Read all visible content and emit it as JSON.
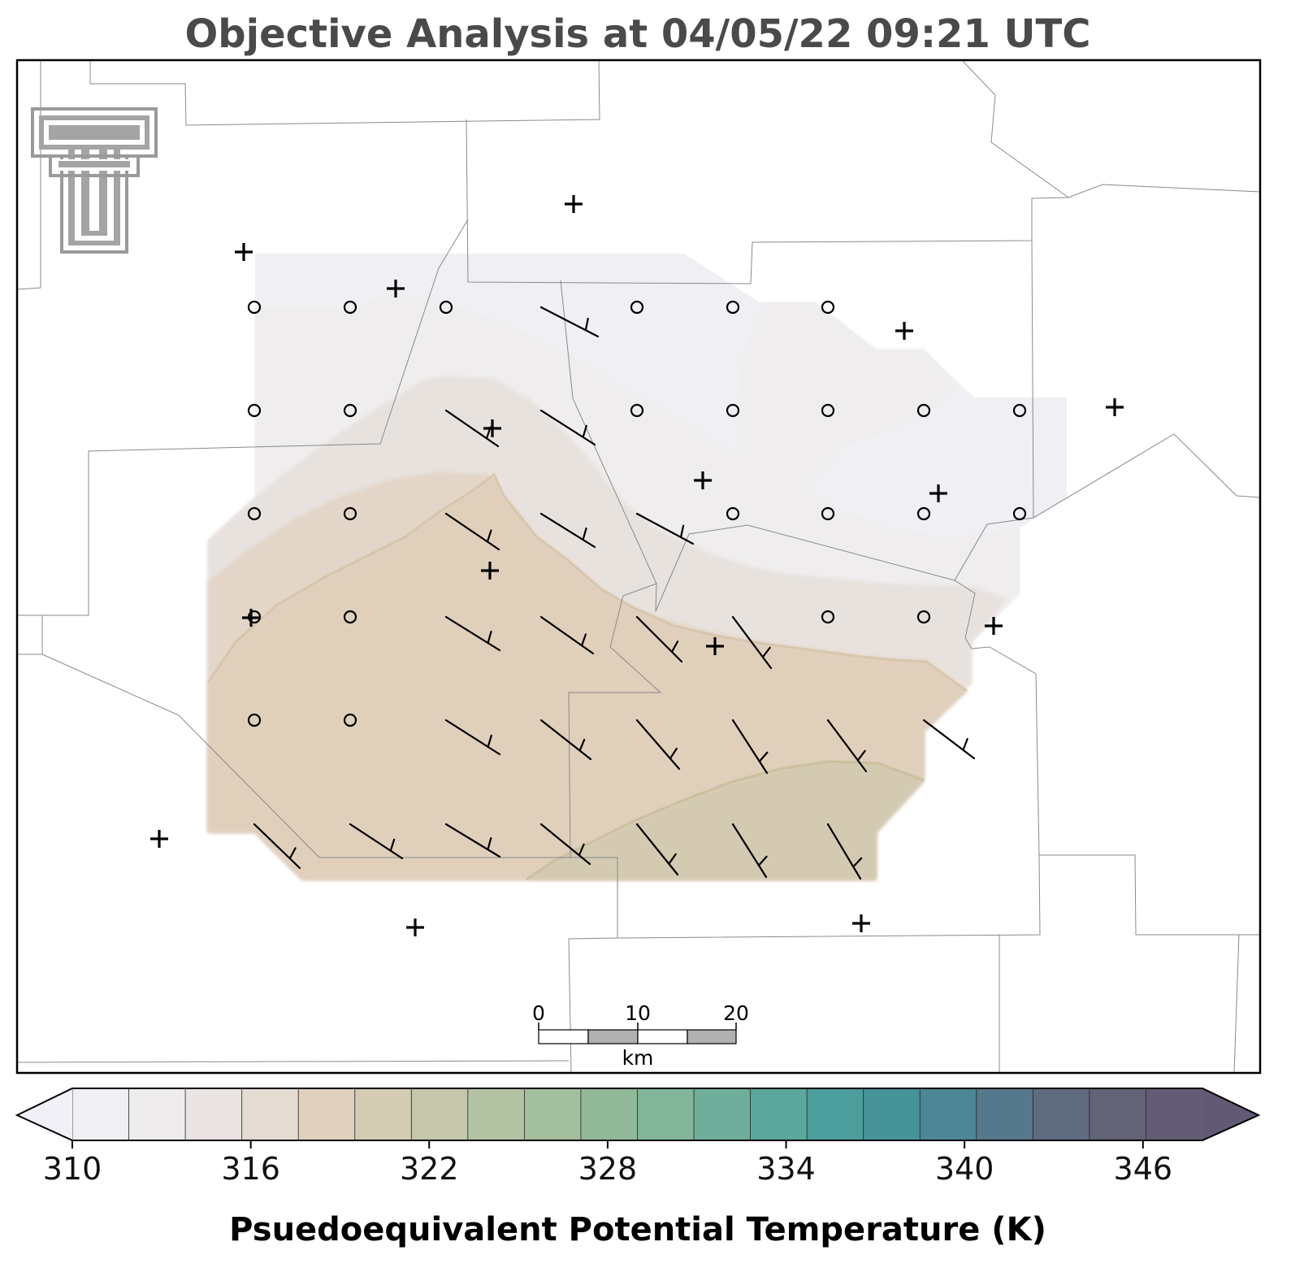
{
  "title": "Objective Analysis at 04/05/22 09:21 UTC",
  "colorbar": {
    "label": "Psuedoequivalent Potential Temperature (K)",
    "min": 310,
    "max": 348,
    "step": 2,
    "ticks": [
      "310",
      "316",
      "322",
      "328",
      "334",
      "340",
      "346"
    ],
    "tick_values": [
      310,
      316,
      322,
      328,
      334,
      340,
      346
    ],
    "extend": "both",
    "colors": [
      "#f0eff3",
      "#efeced",
      "#e9e4e2",
      "#e4dbd3",
      "#e0d0bd",
      "#d3ccb2",
      "#c5c6aa",
      "#b5c3a5",
      "#a4bf9d",
      "#92b99a",
      "#82b59a",
      "#6fae9b",
      "#5ba79c",
      "#4c9e9d",
      "#47939a",
      "#4d8694",
      "#56788c",
      "#5f6c80",
      "#636378",
      "#645c74"
    ],
    "under_color": "#f1f0f6",
    "over_color": "#625a74"
  },
  "scale_bar": {
    "ticks": [
      "0",
      "10",
      "20"
    ],
    "unit": "km"
  },
  "logo": "texas-tech-double-t-logo",
  "calm_stations": [
    [
      313,
      378
    ],
    [
      431,
      378
    ],
    [
      549,
      378
    ],
    [
      784,
      378
    ],
    [
      902,
      378
    ],
    [
      1019,
      378
    ],
    [
      313,
      505
    ],
    [
      431,
      505
    ],
    [
      784,
      505
    ],
    [
      902,
      505
    ],
    [
      1019,
      505
    ],
    [
      1137,
      505
    ],
    [
      1255,
      505
    ],
    [
      313,
      632
    ],
    [
      431,
      632
    ],
    [
      902,
      632
    ],
    [
      1019,
      632
    ],
    [
      1137,
      632
    ],
    [
      1255,
      632
    ],
    [
      313,
      759
    ],
    [
      431,
      759
    ],
    [
      1019,
      759
    ],
    [
      1137,
      759
    ],
    [
      313,
      886
    ],
    [
      431,
      886
    ]
  ],
  "wind_barbs": [
    [
      666,
      378,
      736,
      414
    ],
    [
      549,
      505,
      613,
      549
    ],
    [
      666,
      505,
      732,
      547
    ],
    [
      549,
      632,
      614,
      676
    ],
    [
      666,
      632,
      732,
      673
    ],
    [
      784,
      632,
      853,
      669
    ],
    [
      549,
      759,
      615,
      800
    ],
    [
      666,
      759,
      730,
      804
    ],
    [
      784,
      759,
      839,
      814
    ],
    [
      902,
      759,
      949,
      822
    ],
    [
      549,
      886,
      615,
      928
    ],
    [
      666,
      886,
      727,
      934
    ],
    [
      784,
      886,
      836,
      946
    ],
    [
      902,
      886,
      944,
      951
    ],
    [
      1019,
      886,
      1066,
      949
    ],
    [
      1137,
      886,
      1199,
      933
    ],
    [
      313,
      1014,
      369,
      1068
    ],
    [
      431,
      1014,
      495,
      1056
    ],
    [
      549,
      1014,
      615,
      1054
    ],
    [
      666,
      1014,
      726,
      1063
    ],
    [
      784,
      1014,
      834,
      1076
    ],
    [
      902,
      1014,
      943,
      1079
    ],
    [
      1019,
      1014,
      1059,
      1081
    ]
  ],
  "station_markers": [
    [
      706,
      251
    ],
    [
      300,
      310
    ],
    [
      487,
      355
    ],
    [
      1113,
      407
    ],
    [
      1372,
      501
    ],
    [
      606,
      527
    ],
    [
      865,
      591
    ],
    [
      1155,
      607
    ],
    [
      603,
      702
    ],
    [
      309,
      760
    ],
    [
      1223,
      770
    ],
    [
      880,
      795
    ],
    [
      196,
      1032
    ],
    [
      511,
      1141
    ],
    [
      1060,
      1136
    ]
  ]
}
